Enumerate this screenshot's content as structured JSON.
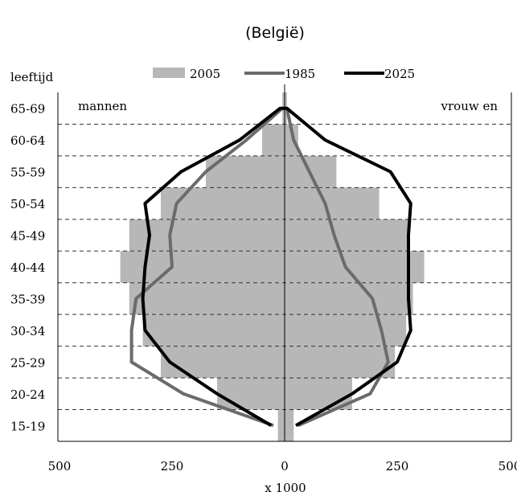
{
  "chart_data": {
    "type": "bar",
    "title": "(België)",
    "ylabel": "leeftijd",
    "xlabel": "x 1000",
    "side_labels": {
      "left": "mannen",
      "right": "vrouw en"
    },
    "categories": [
      "15-19",
      "20-24",
      "25-29",
      "30-34",
      "35-39",
      "40-44",
      "45-49",
      "50-54",
      "55-59",
      "60-64",
      "65-69"
    ],
    "x_ticks": [
      "500",
      "250",
      "0",
      "250",
      "500"
    ],
    "xlim": [
      -500,
      500
    ],
    "grid": "dashed horizontal",
    "legend": "top",
    "series": [
      {
        "name": "2005",
        "kind": "bar",
        "men": [
          15,
          150,
          275,
          315,
          345,
          365,
          345,
          275,
          175,
          50,
          5
        ],
        "women": [
          20,
          150,
          245,
          270,
          285,
          310,
          275,
          210,
          115,
          30,
          5
        ]
      },
      {
        "name": "1985",
        "kind": "line",
        "men": [
          25,
          225,
          340,
          340,
          330,
          250,
          255,
          240,
          175,
          85,
          5
        ],
        "women": [
          30,
          190,
          230,
          215,
          195,
          135,
          110,
          90,
          55,
          20,
          5
        ]
      },
      {
        "name": "2025",
        "kind": "line",
        "men": [
          30,
          150,
          255,
          310,
          315,
          310,
          300,
          310,
          230,
          100,
          10
        ],
        "women": [
          25,
          150,
          250,
          280,
          275,
          275,
          275,
          280,
          235,
          90,
          5
        ]
      }
    ],
    "colors": {
      "bar": "#b7b7b7",
      "1985": "#6b6b6b",
      "2025": "#000000"
    }
  }
}
